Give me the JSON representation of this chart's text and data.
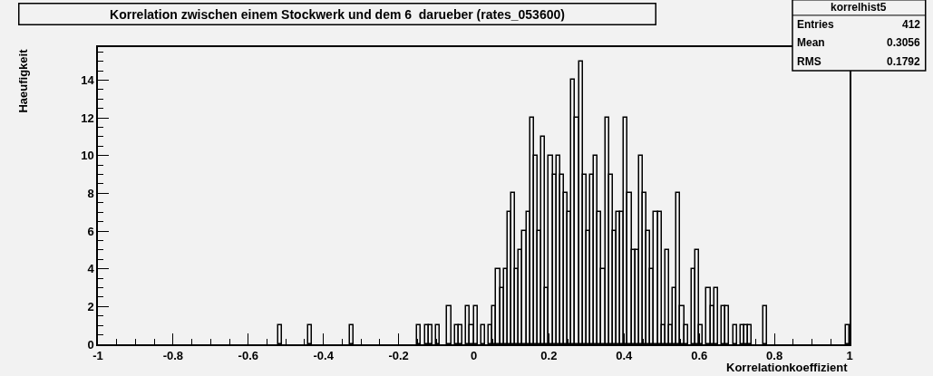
{
  "chart_data": {
    "type": "histogram",
    "title": "Korrelation zwischen einem Stockwerk und dem 6  darueber (rates_053600)",
    "xlabel": "Korrelationkoeffizient",
    "ylabel": "Haeufigkeit",
    "color": "#000000",
    "bins": [
      -1,
      -0.99,
      -0.98,
      -0.97,
      -0.96,
      -0.95,
      -0.94,
      -0.93,
      -0.92,
      -0.91,
      -0.9,
      -0.89,
      -0.88,
      -0.87,
      -0.86,
      -0.85,
      -0.84,
      -0.83,
      -0.82,
      -0.81,
      -0.8,
      -0.79,
      -0.78,
      -0.77,
      -0.76,
      -0.75,
      -0.74,
      -0.73,
      -0.72,
      -0.71,
      -0.7,
      -0.69,
      -0.68,
      -0.67,
      -0.66,
      -0.65,
      -0.64,
      -0.63,
      -0.62,
      -0.61,
      -0.6,
      -0.59,
      -0.58,
      -0.57,
      -0.56,
      -0.55,
      -0.54,
      -0.53,
      -0.52,
      -0.51,
      -0.5,
      -0.49,
      -0.48,
      -0.47,
      -0.46,
      -0.45,
      -0.44,
      -0.43,
      -0.42,
      -0.41,
      -0.4,
      -0.39,
      -0.38,
      -0.37,
      -0.36,
      -0.35,
      -0.34,
      -0.33,
      -0.32,
      -0.31,
      -0.3,
      -0.29,
      -0.28,
      -0.27,
      -0.26,
      -0.25,
      -0.24,
      -0.23,
      -0.22,
      -0.21,
      -0.2,
      -0.19,
      -0.18,
      -0.17,
      -0.16,
      -0.15,
      -0.14,
      -0.13,
      -0.12,
      -0.11,
      -0.1,
      -0.09,
      -0.08,
      -0.07,
      -0.06,
      -0.05,
      -0.04,
      -0.03,
      -0.02,
      -0.01,
      0,
      0.01,
      0.02,
      0.03,
      0.04,
      0.05,
      0.06,
      0.07,
      0.08,
      0.09,
      0.1,
      0.11,
      0.12,
      0.13,
      0.14,
      0.15,
      0.16,
      0.17,
      0.18,
      0.19,
      0.2,
      0.21,
      0.22,
      0.23,
      0.24,
      0.25,
      0.26,
      0.27,
      0.28,
      0.29,
      0.3,
      0.31,
      0.32,
      0.33,
      0.34,
      0.35,
      0.36,
      0.37,
      0.38,
      0.39,
      0.4,
      0.41,
      0.42,
      0.43,
      0.44,
      0.45,
      0.46,
      0.47,
      0.48,
      0.49,
      0.5,
      0.51,
      0.52,
      0.53,
      0.54,
      0.55,
      0.56,
      0.57,
      0.58,
      0.59,
      0.6,
      0.61,
      0.62,
      0.63,
      0.64,
      0.65,
      0.66,
      0.67,
      0.68,
      0.69,
      0.7,
      0.71,
      0.72,
      0.73,
      0.74,
      0.75,
      0.76,
      0.77,
      0.78,
      0.79,
      0.8,
      0.81,
      0.82,
      0.83,
      0.84,
      0.85,
      0.86,
      0.87,
      0.88,
      0.89,
      0.9,
      0.91,
      0.92,
      0.93,
      0.94,
      0.95,
      0.96,
      0.97,
      0.98,
      0.99,
      1
    ],
    "values": [
      0,
      0,
      0,
      0,
      0,
      0,
      0,
      0,
      0,
      0,
      0,
      0,
      0,
      0,
      0,
      0,
      0,
      0,
      0,
      0,
      0,
      0,
      0,
      0,
      0,
      0,
      0,
      0,
      0,
      0,
      0,
      0,
      0,
      0,
      0,
      0,
      0,
      0,
      0,
      0,
      0,
      0,
      0,
      0,
      0,
      0,
      0,
      0,
      1,
      0,
      0,
      0,
      0,
      0,
      0,
      0,
      1,
      0,
      0,
      0,
      0,
      0,
      0,
      0,
      0,
      0,
      0,
      1,
      0,
      0,
      0,
      0,
      0,
      0,
      0,
      0,
      0,
      0,
      0,
      0,
      0,
      0,
      0,
      0,
      0,
      1,
      0,
      1,
      1,
      0,
      1,
      0,
      0,
      2,
      0,
      1,
      1,
      0,
      2,
      1,
      2,
      0,
      1,
      0,
      1,
      2,
      4,
      3,
      4,
      7,
      8,
      4,
      5,
      6,
      7,
      12,
      10,
      6,
      11,
      3,
      10,
      9,
      10,
      9,
      8,
      7,
      14,
      12,
      15,
      9,
      6,
      9,
      10,
      7,
      4,
      12,
      9,
      6,
      7,
      7,
      12,
      8,
      5,
      5,
      10,
      8,
      6,
      4,
      7,
      7,
      1,
      5,
      1,
      3,
      8,
      2,
      1,
      0,
      4,
      5,
      1,
      0,
      3,
      2,
      3,
      0,
      2,
      2,
      0,
      1,
      0,
      1,
      1,
      1,
      0,
      0,
      0,
      2,
      0,
      0,
      0,
      0,
      0,
      0,
      0,
      0,
      0,
      0,
      0,
      0,
      0,
      0,
      0,
      0,
      0,
      0,
      0,
      0,
      0,
      1
    ],
    "xlim": [
      -1,
      1
    ],
    "xticks": [
      -1,
      -0.8,
      -0.6,
      -0.4,
      -0.2,
      0,
      0.2,
      0.4,
      0.6,
      0.8,
      1
    ],
    "ylim": [
      0,
      15.75
    ],
    "yticks": [
      0,
      2,
      4,
      6,
      8,
      10,
      12,
      14
    ],
    "grid": false,
    "annotations": [
      "korrelhist5",
      "Entries",
      "412",
      "Mean",
      "0.3056",
      "RMS",
      "0.1792"
    ]
  }
}
